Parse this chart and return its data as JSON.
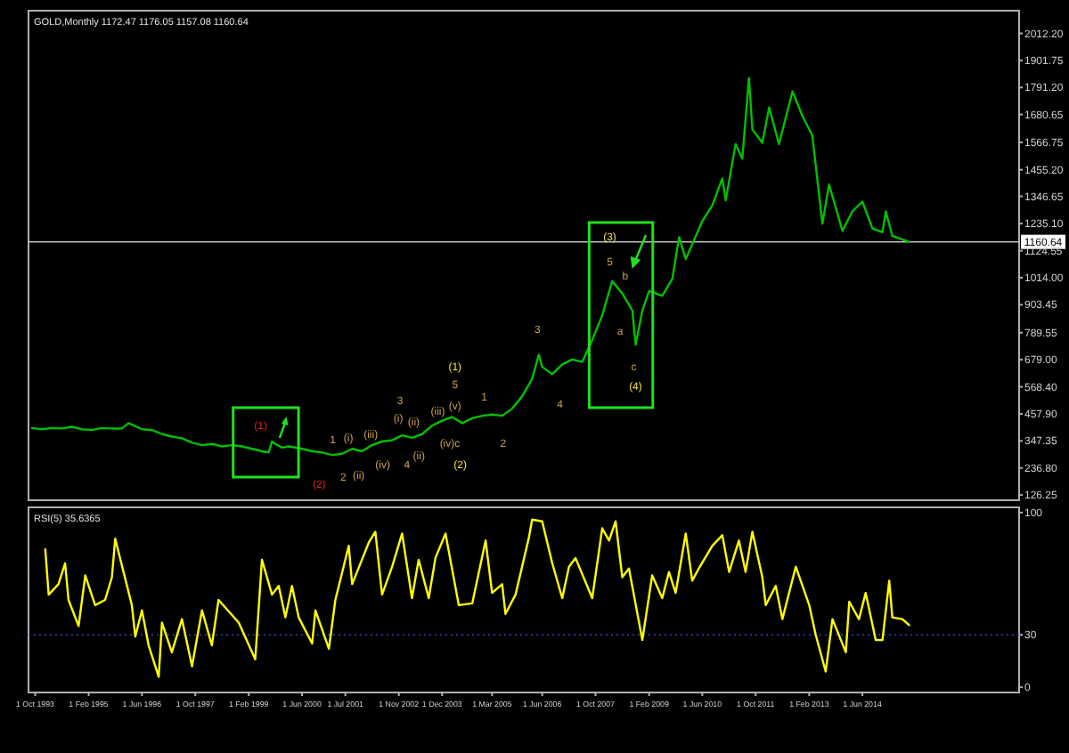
{
  "chart_data": [
    {
      "type": "line",
      "title": "GOLD,Monthly 1172.47 1176.05 1157.08 1160.64",
      "color": "#00c000",
      "tick_labels": "y",
      "xlim": [
        "1993-08-01",
        "2018-05-01"
      ],
      "ylim": [
        105,
        2105
      ],
      "yticks": [
        {
          "value": 126.25,
          "label": "126.25"
        },
        {
          "value": 236.8,
          "label": "236.80"
        },
        {
          "value": 347.35,
          "label": "347.35"
        },
        {
          "value": 457.9,
          "label": "457.90"
        },
        {
          "value": 568.4,
          "label": "568.40"
        },
        {
          "value": 679,
          "label": "679.00"
        },
        {
          "value": 789.55,
          "label": "789.55"
        },
        {
          "value": 903.45,
          "label": "903.45"
        },
        {
          "value": 1014,
          "label": "1014.00"
        },
        {
          "value": 1124.55,
          "label": "1124.55"
        },
        {
          "value": 1235.1,
          "label": "1235.10"
        },
        {
          "value": 1346.65,
          "label": "1346.65"
        },
        {
          "value": 1455.2,
          "label": "1455.20"
        },
        {
          "value": 1566.75,
          "label": "1566.75"
        },
        {
          "value": 1680.65,
          "label": "1680.65"
        },
        {
          "value": 1791.2,
          "label": "1791.20"
        },
        {
          "value": 1901.75,
          "label": "1901.75"
        },
        {
          "value": 2012.2,
          "label": "2012.20"
        }
      ],
      "x": [
        "1993-09",
        "1993-12",
        "1994-03",
        "1994-06",
        "1994-09",
        "1994-12",
        "1995-03",
        "1995-06",
        "1995-09",
        "1995-12",
        "1996-02",
        "1996-06",
        "1996-09",
        "1996-12",
        "1997-03",
        "1997-06",
        "1997-09",
        "1997-12",
        "1998-03",
        "1998-06",
        "1998-09",
        "1998-12",
        "1999-03",
        "1999-06",
        "1999-08",
        "1999-09",
        "1999-10",
        "1999-12",
        "2000-02",
        "2000-06",
        "2000-09",
        "2000-12",
        "2001-03",
        "2001-06",
        "2001-09",
        "2001-12",
        "2002-03",
        "2002-06",
        "2002-09",
        "2002-12",
        "2003-03",
        "2003-06",
        "2003-09",
        "2003-12",
        "2004-03",
        "2004-06",
        "2004-09",
        "2004-12",
        "2005-03",
        "2005-06",
        "2005-09",
        "2005-12",
        "2006-03",
        "2006-05",
        "2006-06",
        "2006-09",
        "2006-12",
        "2007-03",
        "2007-06",
        "2007-09",
        "2007-12",
        "2008-03",
        "2008-06",
        "2008-09",
        "2008-10",
        "2008-12",
        "2009-02",
        "2009-06",
        "2009-09",
        "2009-11",
        "2010-01",
        "2010-06",
        "2010-09",
        "2010-12",
        "2011-01",
        "2011-04",
        "2011-06",
        "2011-08",
        "2011-09",
        "2011-12",
        "2012-02",
        "2012-05",
        "2012-09",
        "2012-12",
        "2013-03",
        "2013-06",
        "2013-08",
        "2013-12",
        "2014-03",
        "2014-06",
        "2014-09",
        "2014-12",
        "2015-01",
        "2015-03",
        "2015-06",
        "2015-08"
      ],
      "values": [
        400,
        395,
        400,
        398,
        405,
        395,
        392,
        400,
        398,
        398,
        420,
        395,
        392,
        375,
        365,
        358,
        340,
        330,
        335,
        325,
        330,
        325,
        315,
        305,
        300,
        345,
        335,
        320,
        325,
        315,
        305,
        300,
        290,
        295,
        315,
        305,
        330,
        345,
        350,
        370,
        360,
        375,
        410,
        430,
        445,
        420,
        440,
        450,
        455,
        450,
        480,
        530,
        600,
        700,
        650,
        620,
        660,
        680,
        670,
        760,
        860,
        1000,
        950,
        880,
        740,
        880,
        960,
        940,
        1010,
        1180,
        1090,
        1245,
        1310,
        1420,
        1330,
        1560,
        1500,
        1830,
        1620,
        1565,
        1710,
        1560,
        1775,
        1675,
        1595,
        1235,
        1395,
        1205,
        1285,
        1325,
        1215,
        1200,
        1285,
        1185,
        1170,
        1160
      ],
      "ref_lines": [
        {
          "axis": "y",
          "value": 1160.64,
          "label": "1160.64",
          "color": "#c0c0c0"
        }
      ],
      "annotations": [
        "(1)",
        "(2)",
        "1",
        "(i)",
        "2",
        "(ii)",
        "(iii)",
        "3",
        "(i)",
        "(ii)",
        "(iv)",
        "4",
        "(ii)",
        "(iii)",
        "(v)",
        "5",
        "(1)",
        "(iv)c",
        "(2)",
        "1",
        "2",
        "3",
        "4",
        "(3)",
        "5",
        "b",
        "a",
        "c",
        "(4)"
      ]
    },
    {
      "type": "line",
      "title": "RSI(5) 35.6365",
      "color": "#ffff00",
      "xlim": [
        "1993-08-01",
        "2018-05-01"
      ],
      "ylim": [
        -3,
        103
      ],
      "yticks": [
        0,
        30,
        100
      ],
      "xticks": [
        {
          "value": "1993-10-01",
          "label": "1 Oct 1993"
        },
        {
          "value": "1995-02-01",
          "label": "1 Feb 1995"
        },
        {
          "value": "1996-06-01",
          "label": "1 Jun 1996"
        },
        {
          "value": "1997-10-01",
          "label": "1 Oct 1997"
        },
        {
          "value": "1999-02-01",
          "label": "1 Feb 1999"
        },
        {
          "value": "2000-06-01",
          "label": "1 Jun 2000"
        },
        {
          "value": "2001-07-01",
          "label": "1 Jul 2001"
        },
        {
          "value": "2002-11-01",
          "label": "1 Nov 2002"
        },
        {
          "value": "2003-12-01",
          "label": "1 Dec 2003"
        },
        {
          "value": "2005-03-01",
          "label": "1 Mar 2005"
        },
        {
          "value": "2006-06-01",
          "label": "1 Jun 2006"
        },
        {
          "value": "2007-10-01",
          "label": "1 Oct 2007"
        },
        {
          "value": "2009-02-01",
          "label": "1 Feb 2009"
        },
        {
          "value": "2010-06-01",
          "label": "1 Jun 2010"
        },
        {
          "value": "2011-10-01",
          "label": "1 Oct 2011"
        },
        {
          "value": "2013-02-01",
          "label": "1 Feb 2013"
        },
        {
          "value": "2014-06-01",
          "label": "1 Jun 2014"
        }
      ],
      "x": [
        "1994-01",
        "1994-02",
        "1994-05",
        "1994-07",
        "1994-08",
        "1994-11",
        "1995-01",
        "1995-04",
        "1995-07",
        "1995-09",
        "1995-10",
        "1996-03",
        "1996-04",
        "1996-06",
        "1996-08",
        "1996-11",
        "1996-12",
        "1997-03",
        "1997-06",
        "1997-09",
        "1997-12",
        "1998-03",
        "1998-05",
        "1998-11",
        "1999-04",
        "1999-06",
        "1999-09",
        "1999-11",
        "2000-01",
        "2000-03",
        "2000-05",
        "2000-09",
        "2000-10",
        "2001-02",
        "2001-04",
        "2001-08",
        "2001-09",
        "2002-02",
        "2002-04",
        "2002-06",
        "2002-09",
        "2002-12",
        "2003-03",
        "2003-05",
        "2003-08",
        "2003-10",
        "2004-01",
        "2004-05",
        "2004-09",
        "2005-01",
        "2005-03",
        "2005-06",
        "2005-07",
        "2005-10",
        "2006-02",
        "2006-03",
        "2006-06",
        "2006-09",
        "2006-12",
        "2007-02",
        "2007-04",
        "2007-09",
        "2007-12",
        "2008-02",
        "2008-04",
        "2008-06",
        "2008-08",
        "2008-12",
        "2009-03",
        "2009-06",
        "2009-08",
        "2009-10",
        "2010-01",
        "2010-03",
        "2010-05",
        "2010-09",
        "2010-12",
        "2011-02",
        "2011-05",
        "2011-07",
        "2011-09",
        "2011-12",
        "2012-01",
        "2012-04",
        "2012-06",
        "2012-10",
        "2013-02",
        "2013-04",
        "2013-07",
        "2013-09",
        "2014-01",
        "2014-02",
        "2014-05",
        "2014-07",
        "2014-10",
        "2014-12",
        "2015-02",
        "2015-03",
        "2015-06",
        "2015-08"
      ],
      "values": [
        79,
        53,
        59,
        71,
        50,
        35,
        64,
        47,
        50,
        63,
        85,
        47,
        29,
        44,
        24,
        6,
        37,
        20,
        39,
        12,
        44,
        24,
        50,
        37,
        16,
        73,
        53,
        58,
        40,
        58,
        40,
        25,
        44,
        22,
        50,
        81,
        59,
        83,
        89,
        53,
        69,
        88,
        51,
        73,
        51,
        74,
        88,
        47,
        48,
        84,
        54,
        59,
        42,
        53,
        86,
        96,
        95,
        71,
        51,
        69,
        74,
        51,
        91,
        84,
        95,
        63,
        68,
        27,
        64,
        51,
        66,
        54,
        88,
        61,
        68,
        81,
        87,
        66,
        84,
        66,
        89,
        63,
        47,
        58,
        39,
        69,
        47,
        30,
        9,
        39,
        20,
        49,
        39,
        54,
        27,
        27,
        61,
        40,
        39,
        35.6
      ],
      "ref_lines": [
        {
          "axis": "y",
          "value": 30,
          "color": "#4040c0",
          "line_style": "dotted"
        }
      ]
    }
  ]
}
